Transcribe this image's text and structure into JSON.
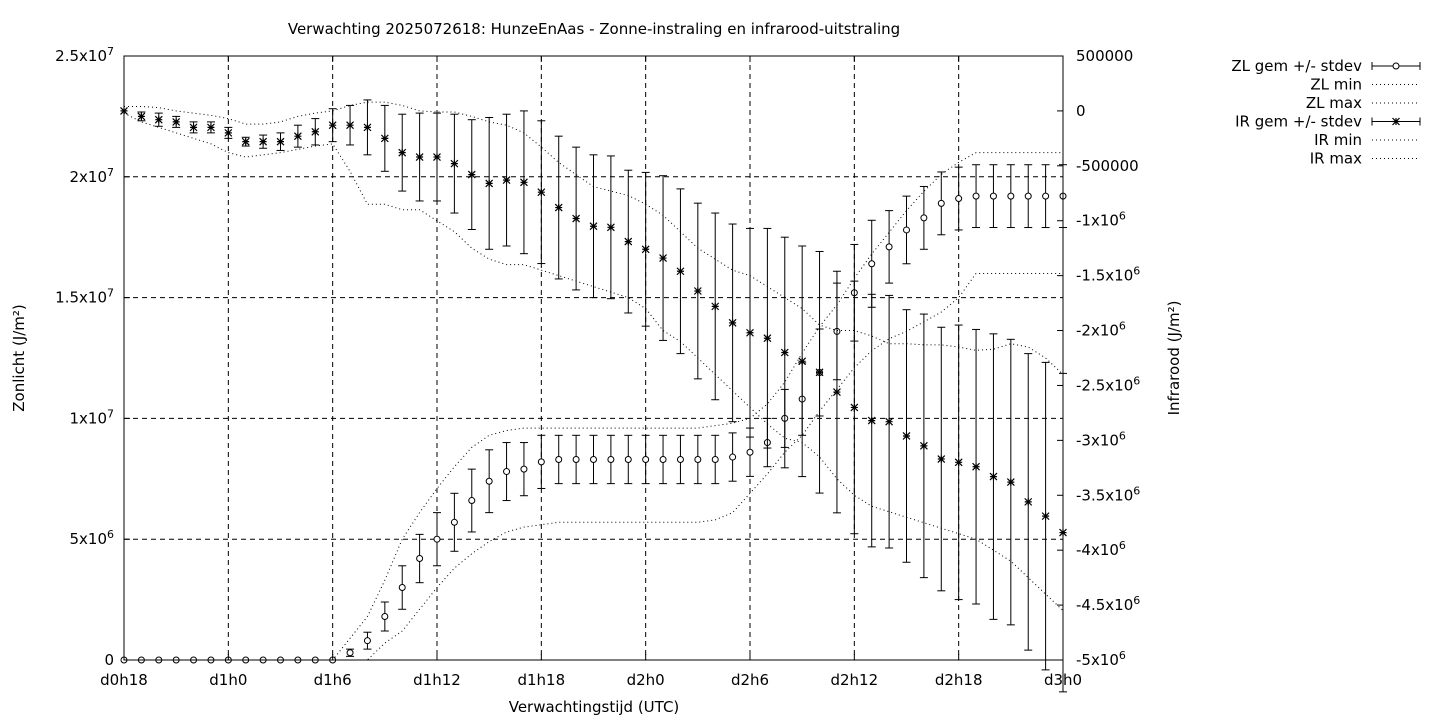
{
  "chart_data": {
    "type": "line",
    "title": "Verwachting 2025072618: HunzeEnAas - Zonne-instraling en infrarood-uitstraling",
    "xlabel": "Verwachtingstijd (UTC)",
    "ylabel": "Zonlicht (J/m²)",
    "y2label": "Infrarood (J/m²)",
    "x_unit": "hours since forecast start",
    "xlim": [
      18,
      72
    ],
    "ylim": [
      0,
      25000000
    ],
    "y2lim": [
      -5000000,
      500000
    ],
    "grid": true,
    "legend_position": "outside-right-top",
    "x_ticks": [
      {
        "value": 18,
        "label": "d0h18"
      },
      {
        "value": 24,
        "label": "d1h0"
      },
      {
        "value": 30,
        "label": "d1h6"
      },
      {
        "value": 36,
        "label": "d1h12"
      },
      {
        "value": 42,
        "label": "d1h18"
      },
      {
        "value": 48,
        "label": "d2h0"
      },
      {
        "value": 54,
        "label": "d2h6"
      },
      {
        "value": 60,
        "label": "d2h12"
      },
      {
        "value": 66,
        "label": "d2h18"
      },
      {
        "value": 72,
        "label": "d3h0"
      }
    ],
    "y_ticks": [
      {
        "value": 0,
        "base": "0",
        "exp": ""
      },
      {
        "value": 5000000,
        "base": "5x10",
        "exp": "6"
      },
      {
        "value": 10000000,
        "base": "1x10",
        "exp": "7"
      },
      {
        "value": 15000000,
        "base": "1.5x10",
        "exp": "7"
      },
      {
        "value": 20000000,
        "base": "2x10",
        "exp": "7"
      },
      {
        "value": 25000000,
        "base": "2.5x10",
        "exp": "7"
      }
    ],
    "y2_ticks": [
      {
        "value": 500000,
        "base": "500000",
        "exp": ""
      },
      {
        "value": 0,
        "base": "0",
        "exp": ""
      },
      {
        "value": -500000,
        "base": "-500000",
        "exp": ""
      },
      {
        "value": -1000000,
        "base": "-1x10",
        "exp": "6"
      },
      {
        "value": -1500000,
        "base": "-1.5x10",
        "exp": "6"
      },
      {
        "value": -2000000,
        "base": "-2x10",
        "exp": "6"
      },
      {
        "value": -2500000,
        "base": "-2.5x10",
        "exp": "6"
      },
      {
        "value": -3000000,
        "base": "-3x10",
        "exp": "6"
      },
      {
        "value": -3500000,
        "base": "-3.5x10",
        "exp": "6"
      },
      {
        "value": -4000000,
        "base": "-4x10",
        "exp": "6"
      },
      {
        "value": -4500000,
        "base": "-4.5x10",
        "exp": "6"
      },
      {
        "value": -5000000,
        "base": "-5x10",
        "exp": "6"
      }
    ],
    "x": [
      18,
      19,
      20,
      21,
      22,
      23,
      24,
      25,
      26,
      27,
      28,
      29,
      30,
      31,
      32,
      33,
      34,
      35,
      36,
      37,
      38,
      39,
      40,
      41,
      42,
      43,
      44,
      45,
      46,
      47,
      48,
      49,
      50,
      51,
      52,
      53,
      54,
      55,
      56,
      57,
      58,
      59,
      60,
      61,
      62,
      63,
      64,
      65,
      66,
      67,
      68,
      69,
      70,
      71,
      72
    ],
    "series": [
      {
        "name": "ZL gem +/- stdev",
        "marker": "circle",
        "axis": "y1",
        "mean": [
          0,
          0,
          0,
          0,
          0,
          0,
          0,
          0,
          0,
          0,
          0,
          0,
          0,
          300000,
          800000,
          1800000,
          3000000,
          4200000,
          5000000,
          5700000,
          6600000,
          7400000,
          7800000,
          7900000,
          8200000,
          8300000,
          8300000,
          8300000,
          8300000,
          8300000,
          8300000,
          8300000,
          8300000,
          8300000,
          8300000,
          8400000,
          8600000,
          9000000,
          10000000,
          10800000,
          11900000,
          13600000,
          15200000,
          16400000,
          17100000,
          17800000,
          18300000,
          18900000,
          19100000,
          19200000,
          19200000,
          19200000,
          19200000,
          19200000,
          19200000
        ],
        "stdev": [
          0,
          0,
          0,
          0,
          0,
          0,
          0,
          0,
          0,
          0,
          0,
          0,
          0,
          150000,
          350000,
          600000,
          900000,
          1000000,
          1100000,
          1200000,
          1300000,
          1300000,
          1200000,
          1100000,
          1100000,
          1000000,
          1000000,
          1000000,
          1000000,
          1000000,
          1000000,
          1000000,
          1000000,
          1000000,
          1000000,
          1000000,
          1000000,
          1000000,
          1200000,
          1500000,
          1800000,
          2000000,
          2000000,
          1800000,
          1500000,
          1400000,
          1300000,
          1300000,
          1300000,
          1300000,
          1300000,
          1300000,
          1300000,
          1300000,
          1300000
        ]
      },
      {
        "name": "ZL min",
        "line": "dotted",
        "axis": "y1",
        "values": [
          0,
          0,
          0,
          0,
          0,
          0,
          0,
          0,
          0,
          0,
          0,
          0,
          0,
          0,
          0,
          700000,
          1200000,
          2100000,
          3000000,
          3800000,
          4400000,
          4900000,
          5300000,
          5500000,
          5600000,
          5700000,
          5700000,
          5700000,
          5700000,
          5700000,
          5700000,
          5700000,
          5700000,
          5700000,
          5800000,
          6100000,
          6900000,
          7700000,
          8600000,
          9300000,
          10300000,
          11200000,
          12100000,
          12800000,
          13300000,
          13600000,
          14000000,
          14400000,
          15000000,
          16000000,
          16000000,
          16000000,
          16000000,
          16000000,
          16000000
        ]
      },
      {
        "name": "ZL max",
        "line": "dotted",
        "axis": "y1",
        "values": [
          0,
          0,
          0,
          0,
          0,
          0,
          0,
          0,
          0,
          0,
          0,
          0,
          0,
          900000,
          1800000,
          3300000,
          5000000,
          6100000,
          7100000,
          8000000,
          8800000,
          9300000,
          9500000,
          9600000,
          9600000,
          9600000,
          9600000,
          9600000,
          9600000,
          9600000,
          9600000,
          9600000,
          9600000,
          9600000,
          9700000,
          9800000,
          10000000,
          10600000,
          11500000,
          12700000,
          13800000,
          14700000,
          15800000,
          16800000,
          17700000,
          18600000,
          19400000,
          20100000,
          20600000,
          21000000,
          21000000,
          21000000,
          21000000,
          21000000,
          21000000
        ]
      },
      {
        "name": "IR gem +/- stdev",
        "marker": "star",
        "axis": "y2",
        "mean": [
          0,
          -50000,
          -80000,
          -100000,
          -150000,
          -150000,
          -200000,
          -280000,
          -280000,
          -280000,
          -230000,
          -190000,
          -130000,
          -130000,
          -150000,
          -250000,
          -380000,
          -420000,
          -420000,
          -480000,
          -580000,
          -660000,
          -630000,
          -650000,
          -740000,
          -880000,
          -980000,
          -1050000,
          -1060000,
          -1190000,
          -1260000,
          -1340000,
          -1460000,
          -1640000,
          -1780000,
          -1930000,
          -2020000,
          -2070000,
          -2200000,
          -2280000,
          -2380000,
          -2560000,
          -2700000,
          -2820000,
          -2830000,
          -2960000,
          -3050000,
          -3170000,
          -3200000,
          -3240000,
          -3330000,
          -3380000,
          -3560000,
          -3690000,
          -3840000
        ],
        "stdev": [
          0,
          40000,
          60000,
          50000,
          50000,
          50000,
          50000,
          40000,
          60000,
          80000,
          100000,
          120000,
          150000,
          180000,
          250000,
          300000,
          350000,
          400000,
          400000,
          450000,
          500000,
          600000,
          600000,
          650000,
          650000,
          650000,
          650000,
          650000,
          650000,
          650000,
          700000,
          750000,
          750000,
          800000,
          850000,
          900000,
          950000,
          1000000,
          1050000,
          1050000,
          1100000,
          1100000,
          1150000,
          1150000,
          1150000,
          1150000,
          1200000,
          1200000,
          1250000,
          1250000,
          1300000,
          1300000,
          1350000,
          1400000,
          1450000
        ]
      },
      {
        "name": "IR min",
        "line": "dotted",
        "axis": "y2",
        "values": [
          -20000,
          -100000,
          -150000,
          -200000,
          -250000,
          -300000,
          -380000,
          -420000,
          -400000,
          -380000,
          -350000,
          -320000,
          -300000,
          -550000,
          -850000,
          -850000,
          -900000,
          -900000,
          -1000000,
          -1100000,
          -1250000,
          -1350000,
          -1400000,
          -1400000,
          -1450000,
          -1500000,
          -1550000,
          -1600000,
          -1650000,
          -1700000,
          -1800000,
          -2000000,
          -2100000,
          -2250000,
          -2400000,
          -2550000,
          -2700000,
          -2850000,
          -2980000,
          -3020000,
          -3150000,
          -3350000,
          -3500000,
          -3600000,
          -3650000,
          -3700000,
          -3750000,
          -3800000,
          -3850000,
          -3900000,
          -4000000,
          -4100000,
          -4250000,
          -4400000,
          -4550000
        ]
      },
      {
        "name": "IR max",
        "line": "dotted",
        "axis": "y2",
        "values": [
          40000,
          40000,
          30000,
          0,
          -20000,
          -40000,
          -70000,
          -120000,
          -120000,
          -100000,
          -50000,
          -20000,
          0,
          50000,
          80000,
          80000,
          50000,
          0,
          -10000,
          -10000,
          -50000,
          -100000,
          -130000,
          -200000,
          -330000,
          -470000,
          -580000,
          -690000,
          -730000,
          -770000,
          -850000,
          -950000,
          -1100000,
          -1250000,
          -1350000,
          -1450000,
          -1500000,
          -1600000,
          -1700000,
          -1800000,
          -1950000,
          -2000000,
          -2000000,
          -2050000,
          -2120000,
          -2120000,
          -2130000,
          -2130000,
          -2150000,
          -2180000,
          -2170000,
          -2120000,
          -2150000,
          -2250000,
          -2400000
        ]
      }
    ]
  }
}
